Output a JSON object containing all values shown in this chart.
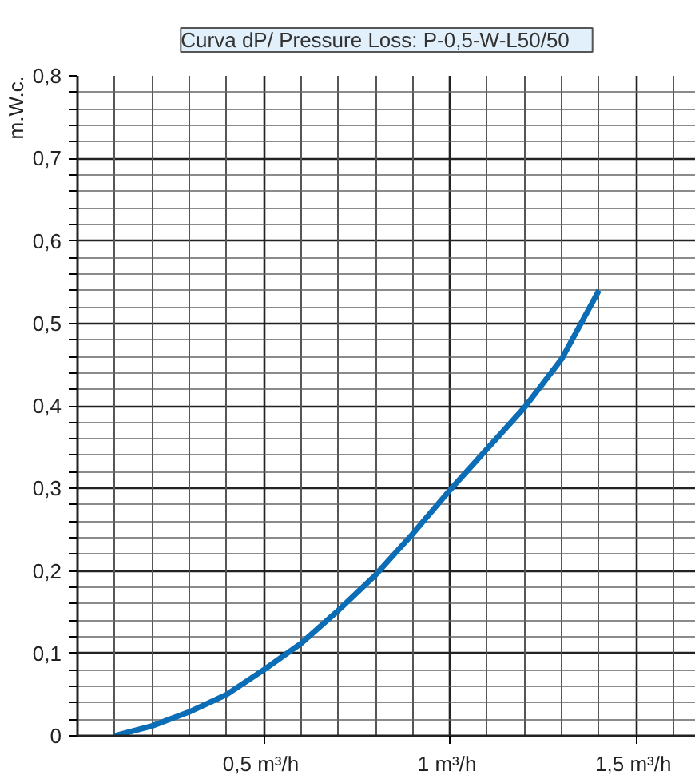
{
  "chart_data": {
    "type": "line",
    "title": "Curva dP/  Pressure Loss:    P-0,5-W-L50/50",
    "ylabel": "m.W.c.",
    "x": [
      0.1,
      0.2,
      0.3,
      0.4,
      0.5,
      0.6,
      0.7,
      0.8,
      0.9,
      1.0,
      1.1,
      1.2,
      1.3,
      1.4
    ],
    "series": [
      {
        "color": "#0b6db5",
        "values": [
          0,
          0.012,
          0.029,
          0.05,
          0.08,
          0.112,
          0.152,
          0.195,
          0.245,
          0.298,
          0.348,
          0.398,
          0.457,
          0.54
        ]
      }
    ],
    "xlim": [
      0,
      1.66
    ],
    "ylim": [
      0,
      0.8
    ],
    "xticks": [
      {
        "value": 0.1,
        "label": null
      },
      {
        "value": 0.2,
        "label": null
      },
      {
        "value": 0.3,
        "label": null
      },
      {
        "value": 0.4,
        "label": null
      },
      {
        "value": 0.5,
        "label": "0,5  m³/h"
      },
      {
        "value": 0.6,
        "label": null
      },
      {
        "value": 0.7,
        "label": null
      },
      {
        "value": 0.8,
        "label": null
      },
      {
        "value": 0.9,
        "label": null
      },
      {
        "value": 1.0,
        "label": "1  m³/h"
      },
      {
        "value": 1.1,
        "label": null
      },
      {
        "value": 1.2,
        "label": null
      },
      {
        "value": 1.3,
        "label": null
      },
      {
        "value": 1.4,
        "label": null
      },
      {
        "value": 1.5,
        "label": "1,5  m³/h"
      },
      {
        "value": 1.6,
        "label": null
      }
    ],
    "yticks": [
      0,
      {
        "value": 0.02,
        "label": null
      },
      {
        "value": 0.04,
        "label": null
      },
      {
        "value": 0.06,
        "label": null
      },
      {
        "value": 0.08,
        "label": null
      },
      {
        "value": 0.1,
        "label": "0,1"
      },
      {
        "value": 0.12,
        "label": null
      },
      {
        "value": 0.14,
        "label": null
      },
      {
        "value": 0.16,
        "label": null
      },
      {
        "value": 0.18,
        "label": null
      },
      {
        "value": 0.2,
        "label": "0,2"
      },
      {
        "value": 0.22,
        "label": null
      },
      {
        "value": 0.24,
        "label": null
      },
      {
        "value": 0.26,
        "label": null
      },
      {
        "value": 0.28,
        "label": null
      },
      {
        "value": 0.3,
        "label": "0,3"
      },
      {
        "value": 0.32,
        "label": null
      },
      {
        "value": 0.34,
        "label": null
      },
      {
        "value": 0.36,
        "label": null
      },
      {
        "value": 0.38,
        "label": null
      },
      {
        "value": 0.4,
        "label": "0,4"
      },
      {
        "value": 0.42,
        "label": null
      },
      {
        "value": 0.44,
        "label": null
      },
      {
        "value": 0.46,
        "label": null
      },
      {
        "value": 0.48,
        "label": null
      },
      {
        "value": 0.5,
        "label": "0,5"
      },
      {
        "value": 0.52,
        "label": null
      },
      {
        "value": 0.54,
        "label": null
      },
      {
        "value": 0.56,
        "label": null
      },
      {
        "value": 0.58,
        "label": null
      },
      {
        "value": 0.6,
        "label": "0,6"
      },
      {
        "value": 0.62,
        "label": null
      },
      {
        "value": 0.64,
        "label": null
      },
      {
        "value": 0.66,
        "label": null
      },
      {
        "value": 0.68,
        "label": null
      },
      {
        "value": 0.7,
        "label": "0,7"
      },
      {
        "value": 0.72,
        "label": null
      },
      {
        "value": 0.74,
        "label": null
      },
      {
        "value": 0.76,
        "label": null
      },
      {
        "value": 0.78,
        "label": null
      },
      {
        "value": 0.8,
        "label": "0,8"
      }
    ],
    "grid": true,
    "line_style": "solid",
    "marker": "none"
  }
}
